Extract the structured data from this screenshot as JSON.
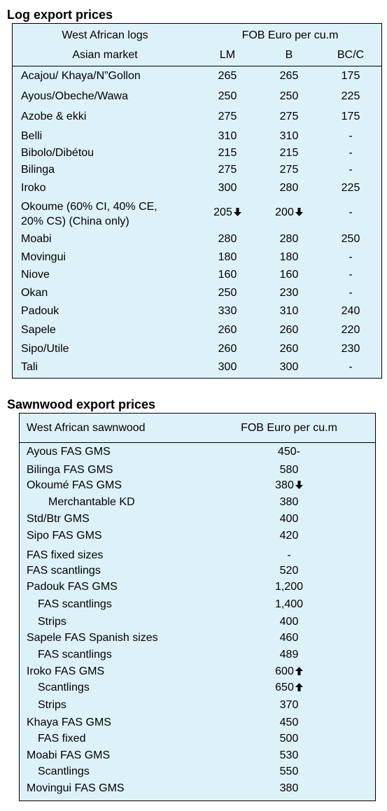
{
  "log": {
    "title": "Log export prices",
    "header": {
      "col1_line1": "West African logs",
      "col1_line2": "Asian market",
      "price_header": "FOB Euro per cu.m",
      "lm": "LM",
      "b": "B",
      "bcc": "BC/C"
    },
    "rows": [
      {
        "name": "Acajou/ Khaya/N”Gollon",
        "lm": "265",
        "b": "265",
        "bcc": "175"
      },
      {
        "name": "Ayous/Obeche/Wawa",
        "lm": "250",
        "b": "250",
        "bcc": "225"
      },
      {
        "name": "Azobe & ekki",
        "lm": "275",
        "b": "275",
        "bcc": "175"
      },
      {
        "name": "Belli",
        "lm": "310",
        "b": "310",
        "bcc": "-"
      },
      {
        "name": "Bibolo/Dibétou",
        "lm": "215",
        "b": "215",
        "bcc": "-"
      },
      {
        "name": "Bilinga",
        "lm": "275",
        "b": "275",
        "bcc": "-"
      },
      {
        "name": "Iroko",
        "lm": "300",
        "b": "280",
        "bcc": "225"
      },
      {
        "name": "Okoume (60% CI, 40% CE,",
        "name2": "20% CS) (China only)",
        "lm": "205",
        "b": "200",
        "bcc": "-",
        "lm_arrow": "down",
        "b_arrow": "down"
      },
      {
        "name": "Moabi",
        "lm": "280",
        "b": "280",
        "bcc": "250"
      },
      {
        "name": "Movingui",
        "lm": "180",
        "b": "180",
        "bcc": "-"
      },
      {
        "name": "Niove",
        "lm": "160",
        "b": "160",
        "bcc": "-"
      },
      {
        "name": "Okan",
        "lm": "250",
        "b": "230",
        "bcc": "-"
      },
      {
        "name": "Padouk",
        "lm": "330",
        "b": "310",
        "bcc": "240"
      },
      {
        "name": "Sapele",
        "lm": "260",
        "b": "260",
        "bcc": "220"
      },
      {
        "name": "Sipo/Utile",
        "lm": "260",
        "b": "260",
        "bcc": "230"
      },
      {
        "name": "Tali",
        "lm": "300",
        "b": "300",
        "bcc": "-"
      }
    ]
  },
  "sawn": {
    "title": "Sawnwood export prices",
    "header": {
      "col1": "West African sawnwood",
      "price_header": "FOB Euro per cu.m"
    },
    "rows": [
      {
        "name": "Ayous FAS GMS",
        "price": "450-",
        "indent": 0
      },
      {
        "name": "Bilinga FAS GMS",
        "price": "580",
        "indent": 0
      },
      {
        "name": "Okoumé FAS GMS",
        "price": "380",
        "indent": 0,
        "arrow": "down"
      },
      {
        "name": "Merchantable KD",
        "price": "380",
        "indent": 2
      },
      {
        "name": "Std/Btr GMS",
        "price": "400",
        "indent": 0
      },
      {
        "name": "Sipo FAS GMS",
        "price": "420",
        "indent": 0
      },
      {
        "name": "FAS fixed sizes",
        "price": "-",
        "indent": 0
      },
      {
        "name": "FAS scantlings",
        "price": "520",
        "indent": 0
      },
      {
        "name": "Padouk FAS GMS",
        "price": "1,200",
        "indent": 0
      },
      {
        "name": "FAS scantlings",
        "price": "1,400",
        "indent": 1
      },
      {
        "name": "Strips",
        "price": "400",
        "indent": 1
      },
      {
        "name": "Sapele FAS Spanish sizes",
        "price": "460",
        "indent": 0
      },
      {
        "name": "FAS scantlings",
        "price": "489",
        "indent": 1
      },
      {
        "name": "Iroko FAS GMS",
        "price": "600",
        "indent": 0,
        "arrow": "up"
      },
      {
        "name": "Scantlings",
        "price": "650",
        "indent": 1,
        "arrow": "up"
      },
      {
        "name": "Strips",
        "price": "370",
        "indent": 1
      },
      {
        "name": "Khaya FAS GMS",
        "price": "450",
        "indent": 0
      },
      {
        "name": "FAS fixed",
        "price": "500",
        "indent": 1
      },
      {
        "name": "Moabi FAS GMS",
        "price": "530",
        "indent": 0
      },
      {
        "name": "Scantlings",
        "price": "550",
        "indent": 1
      },
      {
        "name": "Movingui FAS GMS",
        "price": "380",
        "indent": 0
      }
    ]
  }
}
